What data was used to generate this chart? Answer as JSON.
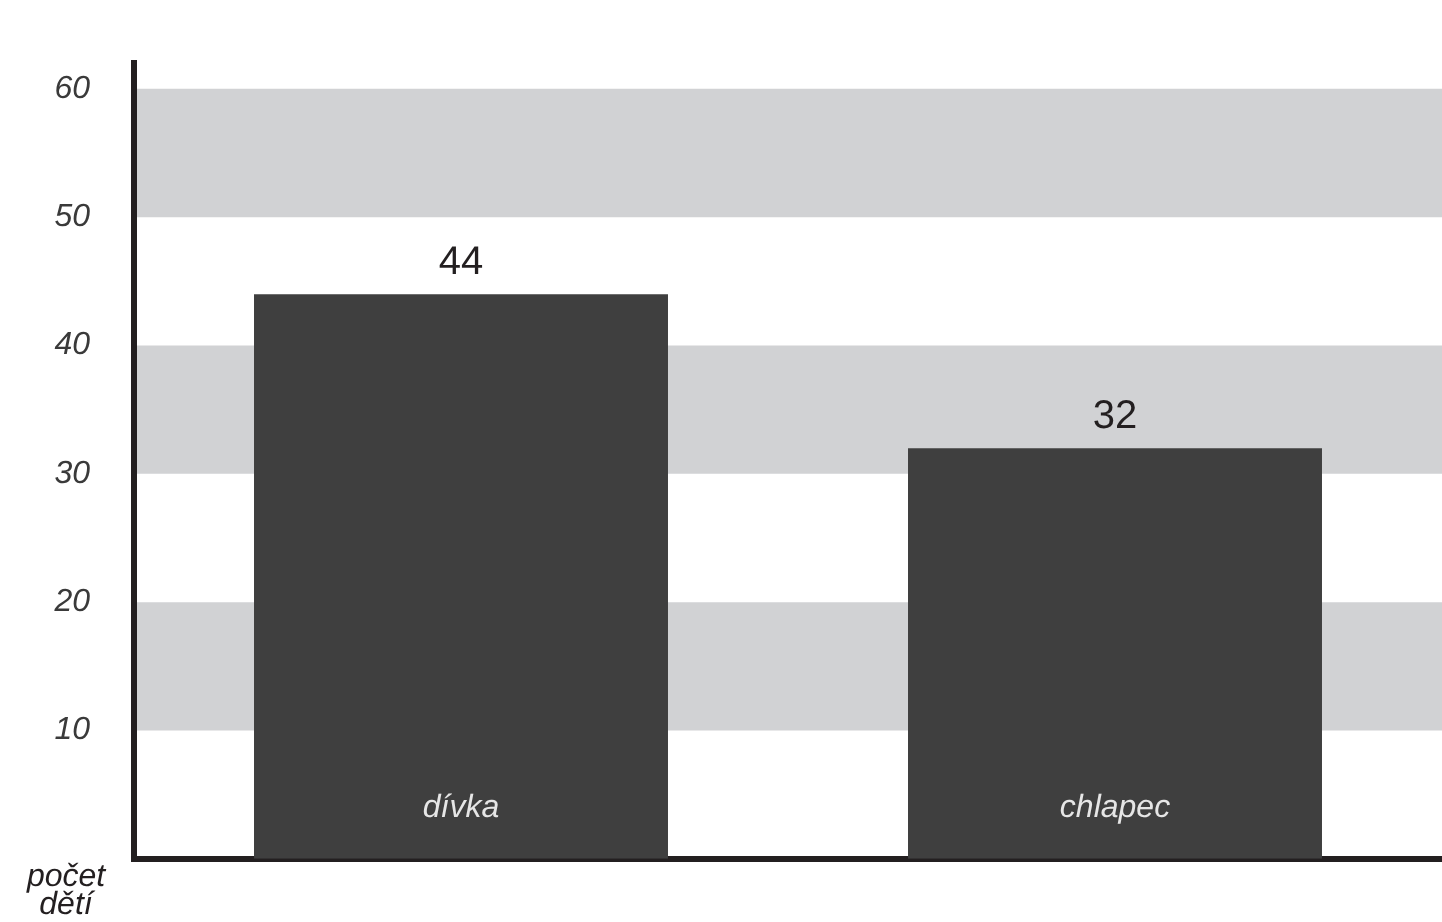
{
  "chart_data": {
    "type": "bar",
    "ylabel": "počet dětí",
    "categories": [
      "dívka",
      "chlapec"
    ],
    "values": [
      44,
      32
    ],
    "color": "#3f3f3f",
    "ylim": [
      0,
      62
    ],
    "yticks": [
      10,
      20,
      30,
      40,
      50,
      60
    ],
    "bands": [
      {
        "axis": "y",
        "from": 10,
        "to": 20,
        "color": "#d1d2d4"
      },
      {
        "axis": "y",
        "from": 30,
        "to": 40,
        "color": "#d1d2d4"
      },
      {
        "axis": "y",
        "from": 50,
        "to": 60,
        "color": "#d1d2d4"
      }
    ],
    "data_labels": true
  }
}
